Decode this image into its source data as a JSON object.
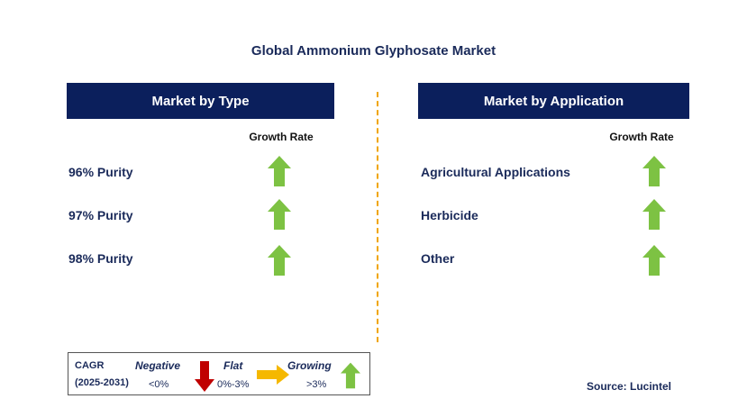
{
  "title": "Global Ammonium Glyphosate Market",
  "colors": {
    "header_bg": "#0b1f5c",
    "text_navy": "#1a2a5a",
    "arrow_up": "#7dc243",
    "arrow_down": "#c00000",
    "arrow_flat": "#f5b800",
    "divider": "#f0a500"
  },
  "left_panel": {
    "header": "Market by Type",
    "growth_label": "Growth Rate",
    "items": [
      {
        "label": "96% Purity",
        "trend": "growing"
      },
      {
        "label": "97% Purity",
        "trend": "growing"
      },
      {
        "label": "98% Purity",
        "trend": "growing"
      }
    ]
  },
  "right_panel": {
    "header": "Market by Application",
    "growth_label": "Growth Rate",
    "items": [
      {
        "label": "Agricultural Applications",
        "trend": "growing"
      },
      {
        "label": "Herbicide",
        "trend": "growing"
      },
      {
        "label": "Other",
        "trend": "growing"
      }
    ]
  },
  "legend": {
    "cagr_label": "CAGR",
    "period": "(2025-2031)",
    "negative": {
      "label": "Negative",
      "range": "<0%",
      "icon": "arrow-down-icon"
    },
    "flat": {
      "label": "Flat",
      "range": "0%-3%",
      "icon": "arrow-right-icon"
    },
    "growing": {
      "label": "Growing",
      "range": ">3%",
      "icon": "arrow-up-icon"
    }
  },
  "source": "Source: Lucintel"
}
